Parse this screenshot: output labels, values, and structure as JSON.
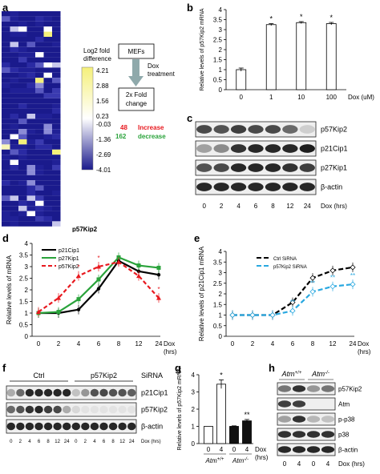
{
  "panel_labels": {
    "a": "a",
    "b": "b",
    "c": "c",
    "d": "d",
    "e": "e",
    "f": "f",
    "g": "g",
    "h": "h"
  },
  "panel_a": {
    "legend_title": "Log2 fold\ndifference",
    "legend_ticks": [
      "4.21",
      "3.55",
      "2.88",
      "2.22",
      "1.56",
      "0.90",
      "0.23",
      "-0.03",
      "-0.70",
      "-1.36",
      "-2.02",
      "-2.69",
      "-3.35",
      "-4.01"
    ],
    "legend_ticks_shown": [
      "4.21",
      "3.55",
      "2.88",
      "2.22",
      "1.56",
      "0.90",
      "0.23",
      "-0.03",
      "-0.70",
      "-1.36",
      "-2.02",
      "-2.69",
      "-3.35",
      "-4.01"
    ],
    "box_mefs": "MEFs",
    "dox_treatment": "Dox\ntreatment",
    "box_fold": "2x Fold\nchange",
    "increase_count": "48",
    "increase_label": "Increase",
    "decrease_count": "162",
    "decrease_label": "decrease",
    "gene_label": "p57Kip2",
    "colors": {
      "high": "#f5f07a",
      "mid": "#ffffff",
      "low": "#1a1a8c",
      "increase": "#e8191f",
      "decrease": "#2aa33b"
    }
  },
  "panel_b": {
    "chart_data": {
      "type": "bar",
      "categories": [
        "0",
        "1",
        "10",
        "100"
      ],
      "values": [
        1.0,
        3.25,
        3.35,
        3.3
      ],
      "errors": [
        0.08,
        0.05,
        0.05,
        0.06
      ],
      "significance": [
        "",
        "*",
        "*",
        "*"
      ],
      "ylabel": "Relative levels of p57Kip2 mRNA",
      "xlabel": "Dox (uM)",
      "ylim": [
        0,
        4
      ],
      "yticks": [
        "0",
        "0.5",
        "1",
        "1.5",
        "2",
        "2.5",
        "3",
        "3.5",
        "4"
      ]
    }
  },
  "panel_c": {
    "rows": [
      "p57Kip2",
      "p21Cip1",
      "p27Kip1",
      "β-actin"
    ],
    "lanes": [
      "0",
      "2",
      "4",
      "6",
      "8",
      "12",
      "24"
    ],
    "axis_label": "Dox (hrs)"
  },
  "panel_d": {
    "chart_data": {
      "type": "line",
      "categories": [
        "0",
        "2",
        "4",
        "6",
        "8",
        "12",
        "24"
      ],
      "series": [
        {
          "name": "p21Cip1",
          "values": [
            1.0,
            1.0,
            1.15,
            2.05,
            3.25,
            2.8,
            2.65
          ],
          "color": "#000000"
        },
        {
          "name": "p27Kip1",
          "values": [
            1.0,
            1.05,
            1.6,
            2.45,
            3.4,
            3.05,
            2.95
          ],
          "color": "#2aa33b"
        },
        {
          "name": "p57Kip2",
          "values": [
            1.05,
            1.65,
            2.6,
            3.0,
            3.2,
            2.6,
            1.65
          ],
          "color": "#e8191f"
        }
      ],
      "ylabel": "Relative levels of mRNA",
      "xlabel": "Dox\n(hrs)",
      "ylim": [
        0,
        4
      ],
      "yticks": [
        "0",
        "0.5",
        "1",
        "1.5",
        "2",
        "2.5",
        "3",
        "3.5",
        "4"
      ]
    }
  },
  "panel_e": {
    "chart_data": {
      "type": "line",
      "categories": [
        "0",
        "2",
        "4",
        "6",
        "8",
        "12",
        "24"
      ],
      "series": [
        {
          "name": "Ctrl SiRNA",
          "values": [
            1.0,
            1.0,
            1.0,
            1.6,
            2.75,
            3.1,
            3.25
          ],
          "color": "#000000"
        },
        {
          "name": "p57Kip2 SiRNA",
          "values": [
            1.0,
            1.0,
            1.0,
            1.2,
            2.1,
            2.35,
            2.45
          ],
          "color": "#29a8e0"
        }
      ],
      "significance": [
        "",
        "",
        "",
        "**",
        "**",
        "**",
        "**"
      ],
      "ylabel": "Relative levels of p21Cip1 mRNA",
      "xlabel": "Dox\n(hrs)",
      "ylim": [
        0,
        4
      ],
      "yticks": [
        "0",
        "0.5",
        "1",
        "1.5",
        "2",
        "2.5",
        "3",
        "3.5",
        "4"
      ]
    }
  },
  "panel_f": {
    "group_ctrl": "Ctrl",
    "group_p57": "p57Kip2",
    "sirna": "SiRNA",
    "rows": [
      "p21Cip1",
      "p57Kip2",
      "β-actin"
    ],
    "lanes": [
      "0",
      "2",
      "4",
      "6",
      "8",
      "12",
      "24",
      "0",
      "2",
      "4",
      "6",
      "8",
      "12",
      "24"
    ],
    "axis_label": "Dox (hrs)"
  },
  "panel_g": {
    "chart_data": {
      "type": "bar",
      "categories": [
        "0",
        "4",
        "0",
        "4"
      ],
      "values": [
        1.0,
        3.45,
        1.0,
        1.32
      ],
      "errors": [
        0.0,
        0.25,
        0.03,
        0.08
      ],
      "significance": [
        "",
        "*",
        "",
        "**"
      ],
      "groups": [
        "Atm+/+",
        "Atm-/-"
      ],
      "ylabel": "Relative levels of p57Kip2 mRNA",
      "xlabel": "Dox\n(hrs)",
      "ylim": [
        0,
        4
      ],
      "yticks": [
        "0",
        "1",
        "2",
        "3",
        "4"
      ]
    },
    "group_wt": "Atm",
    "group_wt_sup": "+/+",
    "group_ko": "Atm",
    "group_ko_sup": "-/-",
    "dox": "Dox",
    "hrs": "(hrs)"
  },
  "panel_h": {
    "group_wt": "Atm",
    "group_wt_sup": "+/+",
    "group_ko": "Atm",
    "group_ko_sup": "-/-",
    "rows": [
      "p57Kip2",
      "Atm",
      "p-p38",
      "p38",
      "β-actin"
    ],
    "lanes": [
      "0",
      "4",
      "0",
      "4"
    ],
    "axis_label": "Dox (hrs)"
  }
}
